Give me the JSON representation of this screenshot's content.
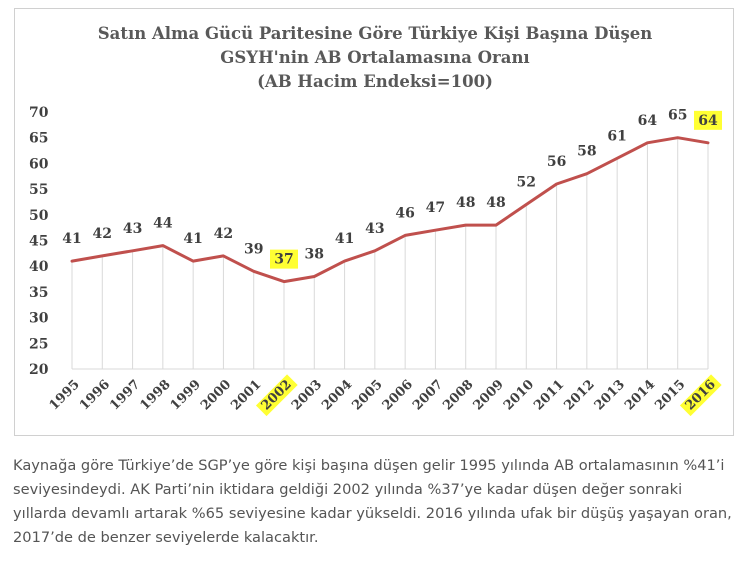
{
  "chart_data": {
    "type": "line",
    "title_lines": [
      "Satın Alma Gücü Paritesine Göre Türkiye Kişi Başına Düşen",
      "GSYH'nin AB Ortalamasına Oranı",
      "(AB Hacim Endeksi=100)"
    ],
    "categories": [
      "1995",
      "1996",
      "1997",
      "1998",
      "1999",
      "2000",
      "2001",
      "2002",
      "2003",
      "2004",
      "2005",
      "2006",
      "2007",
      "2008",
      "2009",
      "2010",
      "2011",
      "2012",
      "2013",
      "2014",
      "2015",
      "2016"
    ],
    "values": [
      41,
      42,
      43,
      44,
      41,
      42,
      39,
      37,
      38,
      41,
      43,
      46,
      47,
      48,
      48,
      52,
      56,
      58,
      61,
      64,
      65,
      64
    ],
    "highlighted_categories": [
      "2002",
      "2016"
    ],
    "ylim": [
      20,
      70
    ],
    "yticks": [
      20,
      25,
      30,
      35,
      40,
      45,
      50,
      55,
      60,
      65,
      70
    ],
    "grid": "vertical",
    "colors": {
      "line": "#c0504d",
      "highlight": "#ffff33",
      "title": "#595959",
      "text": "#404040",
      "grid": "#d9d9d9"
    }
  },
  "caption": "Kaynağa göre Türkiye’de SGP’ye göre kişi başına düşen gelir 1995 yılında AB ortalamasının %41’i seviyesindeydi. AK Parti’nin iktidara geldiği 2002 yılında %37’ye kadar düşen değer sonraki yıllarda devamlı artarak %65 seviyesine kadar yükseldi. 2016 yılında ufak bir düşüş yaşayan oran, 2017’de de benzer seviyelerde kalacaktır."
}
